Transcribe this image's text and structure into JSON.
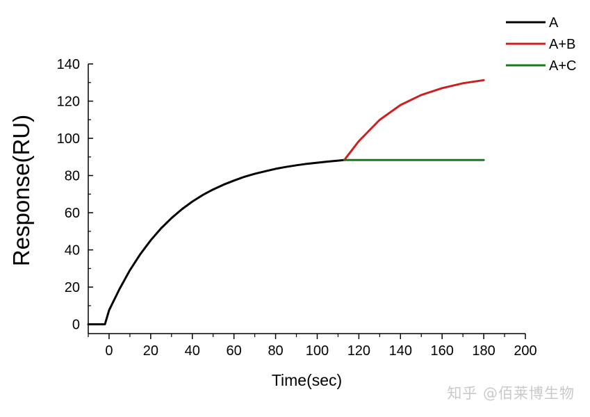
{
  "chart_data": {
    "type": "line",
    "title": "",
    "xlabel": "Time(sec)",
    "ylabel": "Response(RU)",
    "xlim": [
      -10,
      200
    ],
    "ylim": [
      -5,
      140
    ],
    "xticks": [
      0,
      20,
      40,
      60,
      80,
      100,
      120,
      140,
      160,
      180,
      200
    ],
    "yticks": [
      0,
      20,
      40,
      60,
      80,
      100,
      120,
      140
    ],
    "legend_position": "top-right, outside plot",
    "grid": false,
    "series": [
      {
        "name": "A",
        "color": "#000000",
        "x": [
          -10,
          -2,
          0,
          5,
          10,
          15,
          20,
          25,
          30,
          35,
          40,
          45,
          50,
          55,
          60,
          65,
          70,
          75,
          80,
          85,
          90,
          95,
          100,
          105,
          110,
          113
        ],
        "y": [
          0,
          0,
          7.6,
          18.9,
          29.1,
          37.7,
          45.2,
          51.6,
          57.1,
          61.9,
          66.0,
          69.5,
          72.5,
          75.1,
          77.3,
          79.3,
          80.9,
          82.3,
          83.6,
          84.6,
          85.5,
          86.3,
          86.9,
          87.5,
          88.0,
          88.3
        ]
      },
      {
        "name": "A+B",
        "color": "#cc1f1f",
        "x": [
          113,
          120,
          130,
          140,
          150,
          160,
          170,
          180
        ],
        "y": [
          88.3,
          98.5,
          109.9,
          117.9,
          123.3,
          127.0,
          129.6,
          131.3
        ]
      },
      {
        "name": "A+C",
        "color": "#1a7a1a",
        "x": [
          113,
          180
        ],
        "y": [
          88.3,
          88.3
        ]
      }
    ]
  },
  "watermark": "知乎 @佰莱博生物"
}
